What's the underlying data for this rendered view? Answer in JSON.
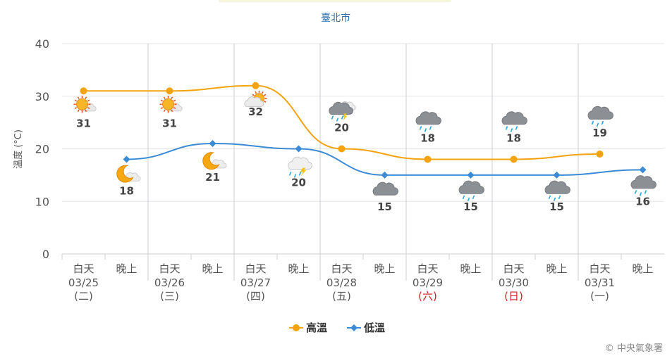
{
  "chart_data": {
    "type": "line",
    "title": "臺北市",
    "ylabel": "溫度 (°C)",
    "ylim": [
      0,
      40
    ],
    "yticks": [
      0,
      10,
      20,
      30,
      40
    ],
    "grid": true,
    "legend_position": "bottom",
    "credit": "© 中央氣象署",
    "categories": [
      {
        "period": "白天",
        "date": "03/25",
        "weekday": "(二)",
        "holiday": false
      },
      {
        "period": "晚上",
        "date": "",
        "weekday": "",
        "holiday": false
      },
      {
        "period": "白天",
        "date": "03/26",
        "weekday": "(三)",
        "holiday": false
      },
      {
        "period": "晚上",
        "date": "",
        "weekday": "",
        "holiday": false
      },
      {
        "period": "白天",
        "date": "03/27",
        "weekday": "(四)",
        "holiday": false
      },
      {
        "period": "晚上",
        "date": "",
        "weekday": "",
        "holiday": false
      },
      {
        "period": "白天",
        "date": "03/28",
        "weekday": "(五)",
        "holiday": false
      },
      {
        "period": "晚上",
        "date": "",
        "weekday": "",
        "holiday": false
      },
      {
        "period": "白天",
        "date": "03/29",
        "weekday": "(六)",
        "holiday": true
      },
      {
        "period": "晚上",
        "date": "",
        "weekday": "",
        "holiday": false
      },
      {
        "period": "白天",
        "date": "03/30",
        "weekday": "(日)",
        "holiday": true
      },
      {
        "period": "晚上",
        "date": "",
        "weekday": "",
        "holiday": false
      },
      {
        "period": "白天",
        "date": "03/31",
        "weekday": "(一)",
        "holiday": false
      },
      {
        "period": "晚上",
        "date": "",
        "weekday": "",
        "holiday": false
      }
    ],
    "series": [
      {
        "name": "高溫",
        "color": "#f4a30f",
        "marker": "circle",
        "points": [
          {
            "index": 0,
            "value": 31,
            "icon": "sunny"
          },
          {
            "index": 2,
            "value": 31,
            "icon": "sunny"
          },
          {
            "index": 4,
            "value": 32,
            "icon": "partly-cloudy-day"
          },
          {
            "index": 6,
            "value": 20,
            "icon": "rain-cloudy"
          },
          {
            "index": 8,
            "value": 18,
            "icon": "rain"
          },
          {
            "index": 10,
            "value": 18,
            "icon": "rain"
          },
          {
            "index": 12,
            "value": 19,
            "icon": "rain"
          }
        ]
      },
      {
        "name": "低溫",
        "color": "#3b8ad6",
        "marker": "diamond",
        "points": [
          {
            "index": 1,
            "value": 18,
            "icon": "clear-night"
          },
          {
            "index": 3,
            "value": 21,
            "icon": "clear-night"
          },
          {
            "index": 5,
            "value": 20,
            "icon": "rain-thunder"
          },
          {
            "index": 7,
            "value": 15,
            "icon": "cloudy"
          },
          {
            "index": 9,
            "value": 15,
            "icon": "rain"
          },
          {
            "index": 11,
            "value": 15,
            "icon": "rain"
          },
          {
            "index": 13,
            "value": 16,
            "icon": "rain"
          }
        ]
      }
    ]
  },
  "colors": {
    "title": "#2f6fa8",
    "axis_text": "#555555",
    "holiday": "#d11f1f",
    "grid": "#e6e6e6",
    "day_divider": "#c8cdd4"
  }
}
